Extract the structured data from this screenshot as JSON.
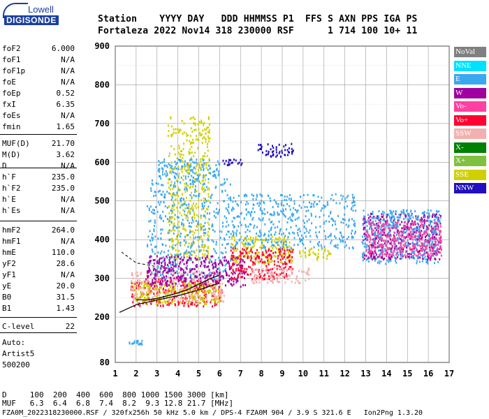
{
  "logo": {
    "top_text": "Lowell",
    "main_text": "DIGISONDE"
  },
  "header": {
    "line1": "Station    YYYY DAY   DDD HHMMSS P1  FFS S AXN PPS IGA PS",
    "line2": "Fortaleza 2022 Nov14 318 230000 RSF      1 714 100 10+ 11"
  },
  "params": [
    {
      "key": "foF2",
      "value": "6.000"
    },
    {
      "key": "foF1",
      "value": "N/A"
    },
    {
      "key": "foF1p",
      "value": "N/A"
    },
    {
      "key": "foE",
      "value": "N/A"
    },
    {
      "key": "foEp",
      "value": "0.52"
    },
    {
      "key": "fxI",
      "value": "6.35"
    },
    {
      "key": "foEs",
      "value": "N/A"
    },
    {
      "key": "fmin",
      "value": "1.65"
    },
    {
      "key": "MUF(D)",
      "value": "21.70"
    },
    {
      "key": "M(D)",
      "value": "3.62"
    },
    {
      "key": "D",
      "value": "N/A"
    },
    {
      "key": "h`F",
      "value": "235.0"
    },
    {
      "key": "h`F2",
      "value": "235.0"
    },
    {
      "key": "h`E",
      "value": "N/A"
    },
    {
      "key": "h`Es",
      "value": "N/A"
    },
    {
      "key": "hmF2",
      "value": "264.0"
    },
    {
      "key": "hmF1",
      "value": "N/A"
    },
    {
      "key": "hmE",
      "value": "110.0"
    },
    {
      "key": "yF2",
      "value": "28.6"
    },
    {
      "key": "yF1",
      "value": "N/A"
    },
    {
      "key": "yE",
      "value": "20.0"
    },
    {
      "key": "B0",
      "value": "31.5"
    },
    {
      "key": "B1",
      "value": "1.43"
    },
    {
      "key": "C-level",
      "value": "22"
    }
  ],
  "auto": {
    "line1": "Auto:",
    "line2": "Artist5",
    "line3": "500200"
  },
  "footer": {
    "d_row": "D     100  200  400  600  800 1000 1500 3000 [km]",
    "muf_row": "MUF   6.3  6.4  6.8  7.4  8.2  9.3 12.8 21.7 [MHz]",
    "info_row": "FZA0M_2022318230000.RSF / 320fx256h 50 kHz 5.0 km / DPS-4 FZA0M 904 / 3.9 S 321.6 E   Ion2Png 1.3.20"
  },
  "legend": [
    {
      "label": "NoVal",
      "color": "#808080"
    },
    {
      "label": "NNE",
      "color": "#00e0ff"
    },
    {
      "label": "E",
      "color": "#3aa8f0"
    },
    {
      "label": "W",
      "color": "#a000a0"
    },
    {
      "label": "Vo-",
      "color": "#ff40a0"
    },
    {
      "label": "Vo+",
      "color": "#ff0030"
    },
    {
      "label": "SSW",
      "color": "#f4b0b0"
    },
    {
      "label": "X-",
      "color": "#008000"
    },
    {
      "label": "X+",
      "color": "#80c040"
    },
    {
      "label": "SSE",
      "color": "#d0d000"
    },
    {
      "label": "NNW",
      "color": "#2010c0"
    }
  ],
  "chart_data": {
    "type": "scatter",
    "xlabel": "",
    "ylabel": "",
    "xlim": [
      1,
      17
    ],
    "ylim": [
      80,
      900
    ],
    "x_ticks": [
      1,
      2,
      3,
      4,
      5,
      6,
      7,
      8,
      9,
      10,
      11,
      12,
      13,
      14,
      15,
      16,
      17
    ],
    "y_ticks": [
      80,
      200,
      300,
      400,
      500,
      600,
      700,
      800,
      900
    ],
    "traces": [
      {
        "name": "virtual-height-trace",
        "x": [
          1.2,
          2.0,
          3.0,
          4.0,
          5.0,
          6.0
        ],
        "y": [
          212,
          232,
          244,
          255,
          270,
          288
        ]
      },
      {
        "name": "profile-trace",
        "x": [
          2.0,
          2.5,
          3.0,
          3.5,
          4.0,
          4.5,
          5.0,
          5.5,
          6.0
        ],
        "y": [
          245,
          244,
          248,
          255,
          262,
          272,
          285,
          298,
          308
        ]
      }
    ],
    "clusters": [
      {
        "color": "#ff0030",
        "x": [
          1.7,
          6.1
        ],
        "y": [
          230,
          300
        ]
      },
      {
        "color": "#f4b0b0",
        "x": [
          1.7,
          6.2
        ],
        "y": [
          240,
          320
        ]
      },
      {
        "color": "#d0d000",
        "x": [
          1.8,
          6.0
        ],
        "y": [
          235,
          290
        ]
      },
      {
        "color": "#3aa8f0",
        "x": [
          3.0,
          6.0
        ],
        "y": [
          560,
          610
        ]
      },
      {
        "color": "#d0d000",
        "x": [
          3.5,
          5.5
        ],
        "y": [
          350,
          720
        ]
      },
      {
        "color": "#3aa8f0",
        "x": [
          2.5,
          6.5
        ],
        "y": [
          300,
          560
        ]
      },
      {
        "color": "#a000a0",
        "x": [
          2.5,
          7.2
        ],
        "y": [
          280,
          360
        ]
      },
      {
        "color": "#2010c0",
        "x": [
          6.1,
          7.1
        ],
        "y": [
          595,
          610
        ]
      },
      {
        "color": "#2010c0",
        "x": [
          7.8,
          9.5
        ],
        "y": [
          615,
          650
        ]
      },
      {
        "color": "#d0d000",
        "x": [
          6.5,
          9.5
        ],
        "y": [
          340,
          410
        ]
      },
      {
        "color": "#ff0030",
        "x": [
          6.5,
          9.5
        ],
        "y": [
          300,
          380
        ]
      },
      {
        "color": "#f4b0b0",
        "x": [
          7.5,
          10.3
        ],
        "y": [
          290,
          330
        ]
      },
      {
        "color": "#d0d000",
        "x": [
          9.8,
          11.3
        ],
        "y": [
          350,
          380
        ]
      },
      {
        "color": "#a000a0",
        "x": [
          12.8,
          16.6
        ],
        "y": [
          350,
          470
        ]
      },
      {
        "color": "#3aa8f0",
        "x": [
          12.8,
          16.6
        ],
        "y": [
          340,
          480
        ]
      },
      {
        "color": "#ff40a0",
        "x": [
          13.0,
          16.6
        ],
        "y": [
          360,
          450
        ]
      },
      {
        "color": "#3aa8f0",
        "x": [
          6.5,
          12.5
        ],
        "y": [
          380,
          520
        ]
      },
      {
        "color": "#3aa8f0",
        "x": [
          1.6,
          2.4
        ],
        "y": [
          130,
          140
        ]
      }
    ]
  }
}
